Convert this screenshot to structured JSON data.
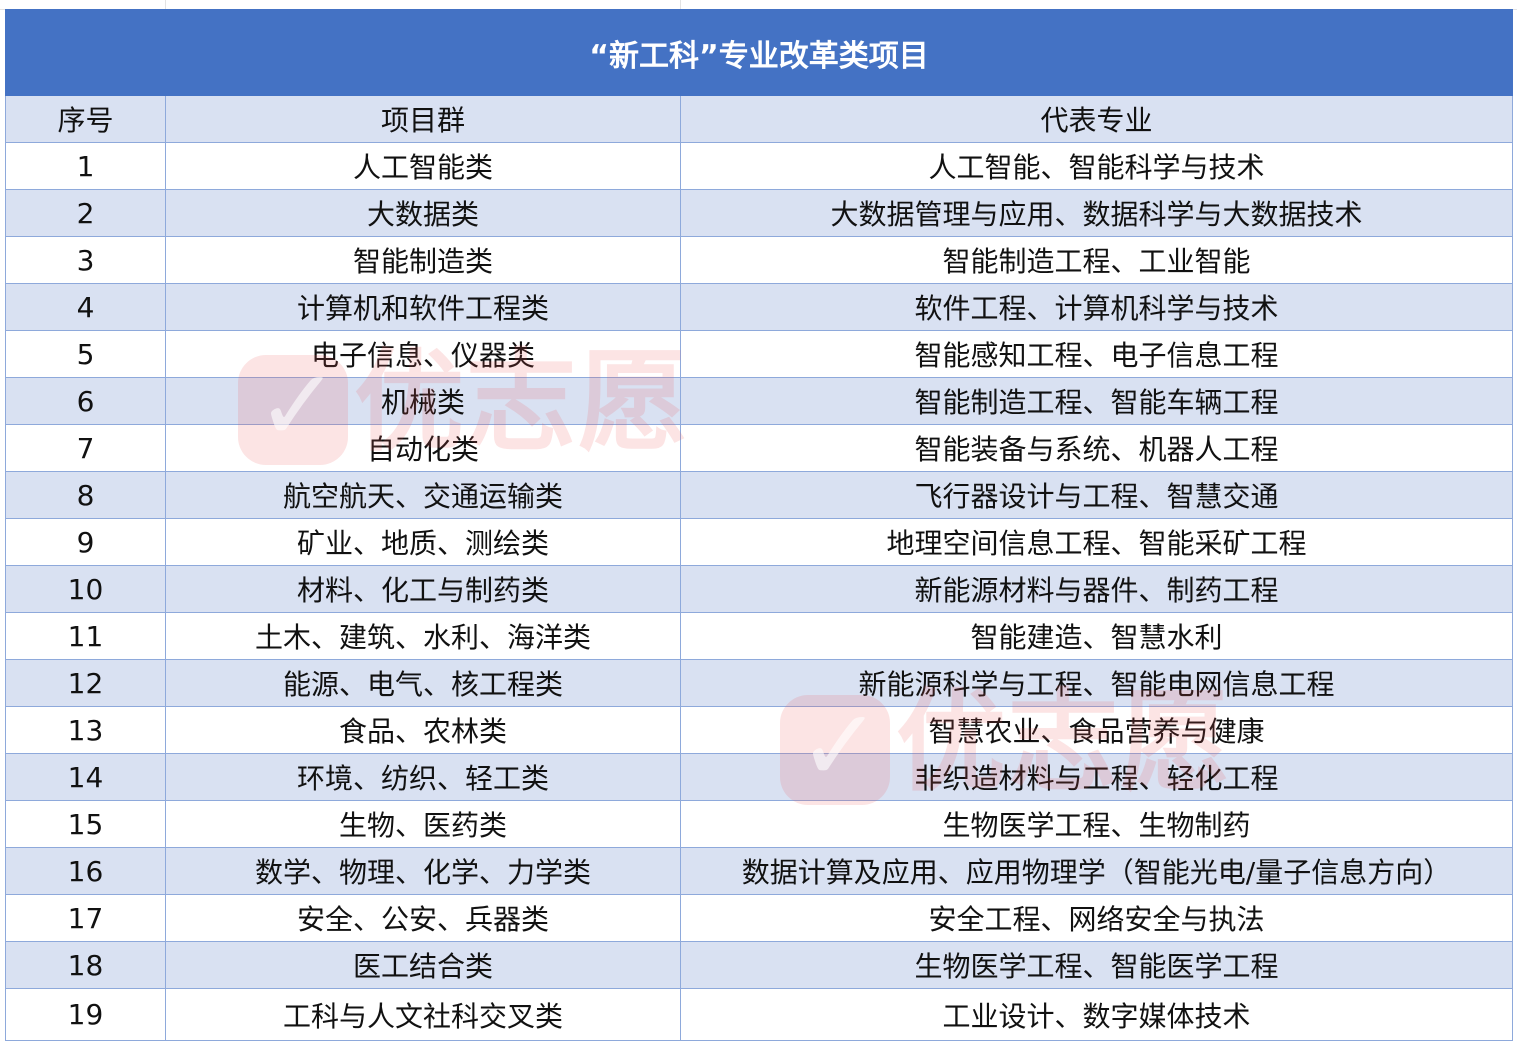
{
  "title": "“新工科”专业改革类项目",
  "headers": [
    "序号",
    "项目群",
    "代表专业"
  ],
  "rows": [
    [
      "1",
      "人工智能类",
      "人工智能、智能科学与技术"
    ],
    [
      "2",
      "大数据类",
      "大数据管理与应用、数据科学与大数据技术"
    ],
    [
      "3",
      "智能制造类",
      "智能制造工程、工业智能"
    ],
    [
      "4",
      "计算机和软件工程类",
      "软件工程、计算机科学与技术"
    ],
    [
      "5",
      "电子信息、仪器类",
      "智能感知工程、电子信息工程"
    ],
    [
      "6",
      "机械类",
      "智能制造工程、智能车辆工程"
    ],
    [
      "7",
      "自动化类",
      "智能装备与系统、机器人工程"
    ],
    [
      "8",
      "航空航天、交通运输类",
      "飞行器设计与工程、智慧交通"
    ],
    [
      "9",
      "矿业、地质、测绘类",
      "地理空间信息工程、智能采矿工程"
    ],
    [
      "10",
      "材料、化工与制药类",
      "新能源材料与器件、制药工程"
    ],
    [
      "11",
      "土木、建筑、水利、海洋类",
      "智能建造、智慧水利"
    ],
    [
      "12",
      "能源、电气、核工程类",
      "新能源科学与工程、智能电网信息工程"
    ],
    [
      "13",
      "食品、农林类",
      "智慧农业、食品营养与健康"
    ],
    [
      "14",
      "环境、纺织、轻工类",
      "非织造材料与工程、轻化工程"
    ],
    [
      "15",
      "生物、医药类",
      "生物医学工程、生物制药"
    ],
    [
      "16",
      "数学、物理、化学、力学类",
      "数据计算及应用、应用物理学（智能光电/量子信息方向）"
    ],
    [
      "17",
      "安全、公安、兵器类",
      "安全工程、网络安全与执法"
    ],
    [
      "18",
      "医工结合类",
      "生物医学工程、智能医学工程"
    ],
    [
      "19",
      "工科与人文社科交叉类",
      "工业设计、数字媒体技术"
    ]
  ],
  "watermark": "优志愿",
  "colors": {
    "title_bg": "#4472c4",
    "band": "#d9e1f2",
    "border": "#8ea9db",
    "watermark": "#eb5a5a"
  }
}
